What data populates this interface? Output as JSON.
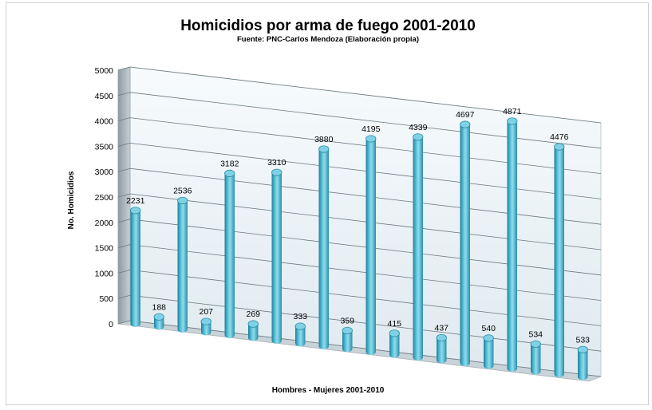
{
  "chart_data": {
    "type": "bar",
    "title": "Homicidios por arma de fuego 2001-2010",
    "subtitle": "Fuente: PNC-Carlos Mendoza (Elaboración propia)",
    "xlabel": "Hombres - Mujeres 2001-2010",
    "ylabel": "No. Homicidios",
    "ylim": [
      0,
      5000
    ],
    "yticks": [
      0,
      500,
      1000,
      1500,
      2000,
      2500,
      3000,
      3500,
      4000,
      4500,
      5000
    ],
    "grid": true,
    "legend": "none",
    "bar_style": "3d-cylinder",
    "bar_color": "#4bb4cf",
    "values": [
      2231,
      188,
      2536,
      207,
      3182,
      269,
      3310,
      333,
      3880,
      359,
      4195,
      415,
      4339,
      437,
      4697,
      540,
      4871,
      534,
      4476,
      533
    ],
    "data_labels": [
      "2231",
      "188",
      "2536",
      "207",
      "3182",
      "269",
      "3310",
      "333",
      "3880",
      "359",
      "4195",
      "415",
      "4339",
      "437",
      "4697",
      "540",
      "4871",
      "534",
      "4476",
      "533"
    ]
  }
}
